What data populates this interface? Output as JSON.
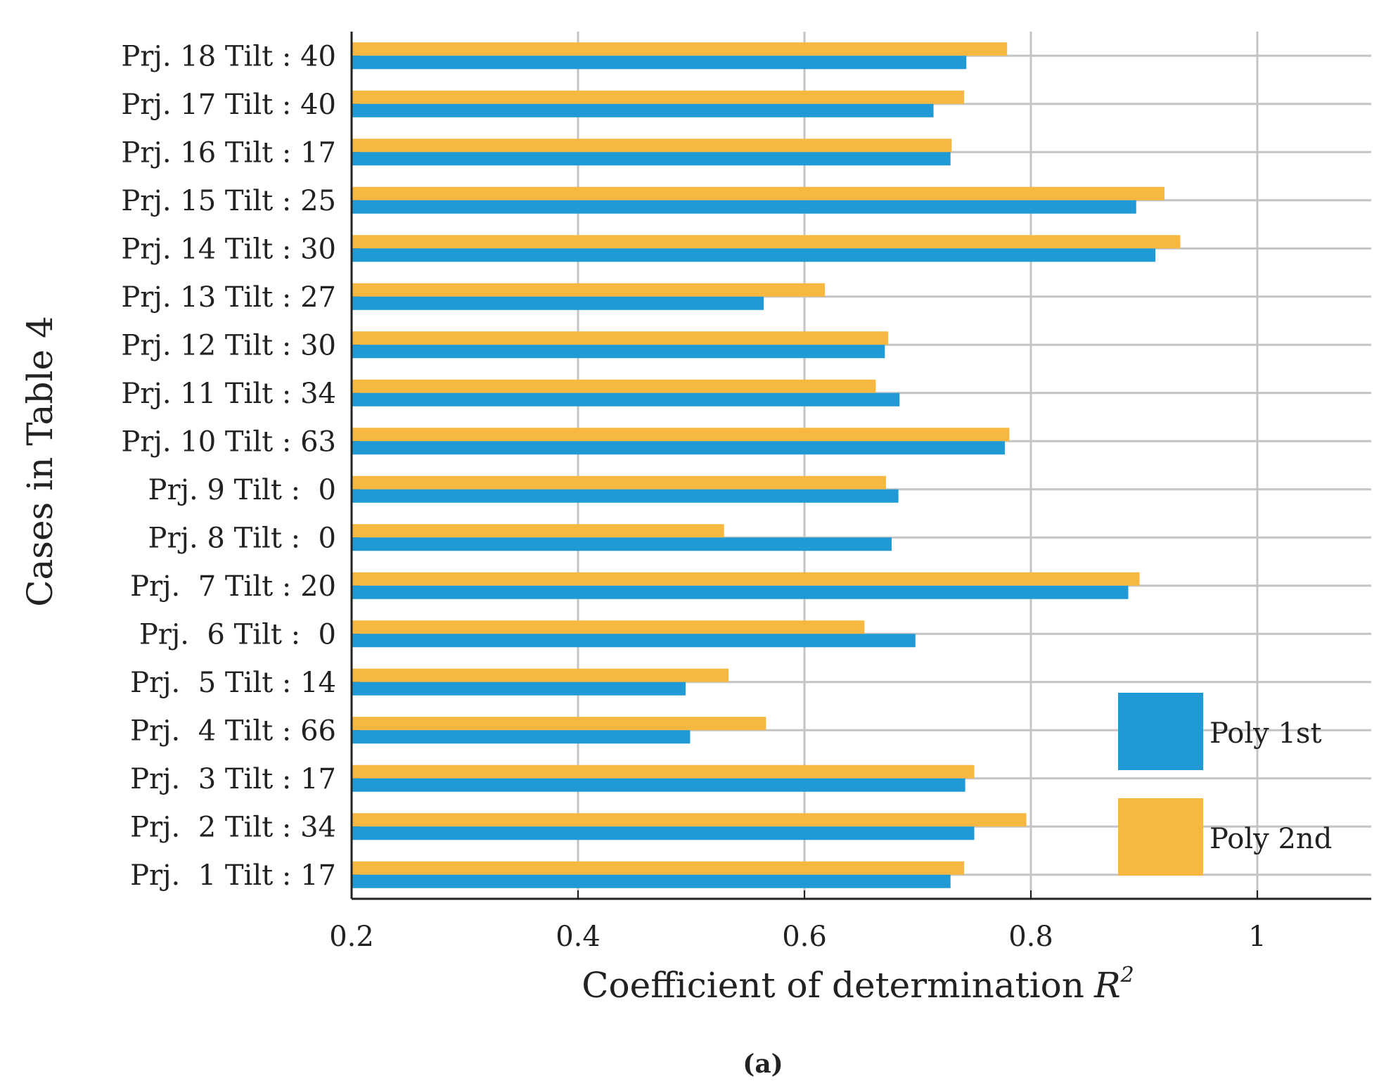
{
  "chart_data": {
    "type": "bar",
    "orientation": "horizontal",
    "xlabel": "Coefficient of determination",
    "xlabel_symbol": "R",
    "xlabel_superscript": "2",
    "ylabel": "Cases in Table 4",
    "xlim": [
      0.2,
      1.1
    ],
    "xticks": [
      0.2,
      0.4,
      0.6,
      0.8,
      1
    ],
    "xtick_labels": [
      "0.2",
      "0.4",
      "0.6",
      "0.8",
      "1"
    ],
    "grid": true,
    "legend_position": "bottom-right",
    "caption": "(a)",
    "categories": [
      "Prj. 18 Tilt : 40",
      "Prj. 17 Tilt : 40",
      "Prj. 16 Tilt : 17",
      "Prj. 15 Tilt : 25",
      "Prj. 14 Tilt : 30",
      "Prj. 13 Tilt : 27",
      "Prj. 12 Tilt : 30",
      "Prj. 11 Tilt : 34",
      "Prj. 10 Tilt : 63",
      "Prj. 9 Tilt :  0",
      "Prj. 8 Tilt :  0",
      "Prj.  7 Tilt : 20",
      "Prj.  6 Tilt :  0",
      "Prj.  5 Tilt : 14",
      "Prj.  4 Tilt : 66",
      "Prj.  3 Tilt : 17",
      "Prj.  2 Tilt : 34",
      "Prj.  1 Tilt : 17"
    ],
    "series": [
      {
        "name": "Poly 1st",
        "color": "#1f9ad5",
        "values": [
          0.743,
          0.714,
          0.729,
          0.893,
          0.91,
          0.564,
          0.671,
          0.684,
          0.777,
          0.683,
          0.677,
          0.886,
          0.698,
          0.495,
          0.499,
          0.742,
          0.75,
          0.729
        ]
      },
      {
        "name": "Poly 2nd",
        "color": "#f6b840",
        "values": [
          0.779,
          0.741,
          0.73,
          0.918,
          0.932,
          0.618,
          0.674,
          0.663,
          0.781,
          0.672,
          0.529,
          0.896,
          0.653,
          0.533,
          0.566,
          0.75,
          0.796,
          0.741
        ]
      }
    ]
  }
}
